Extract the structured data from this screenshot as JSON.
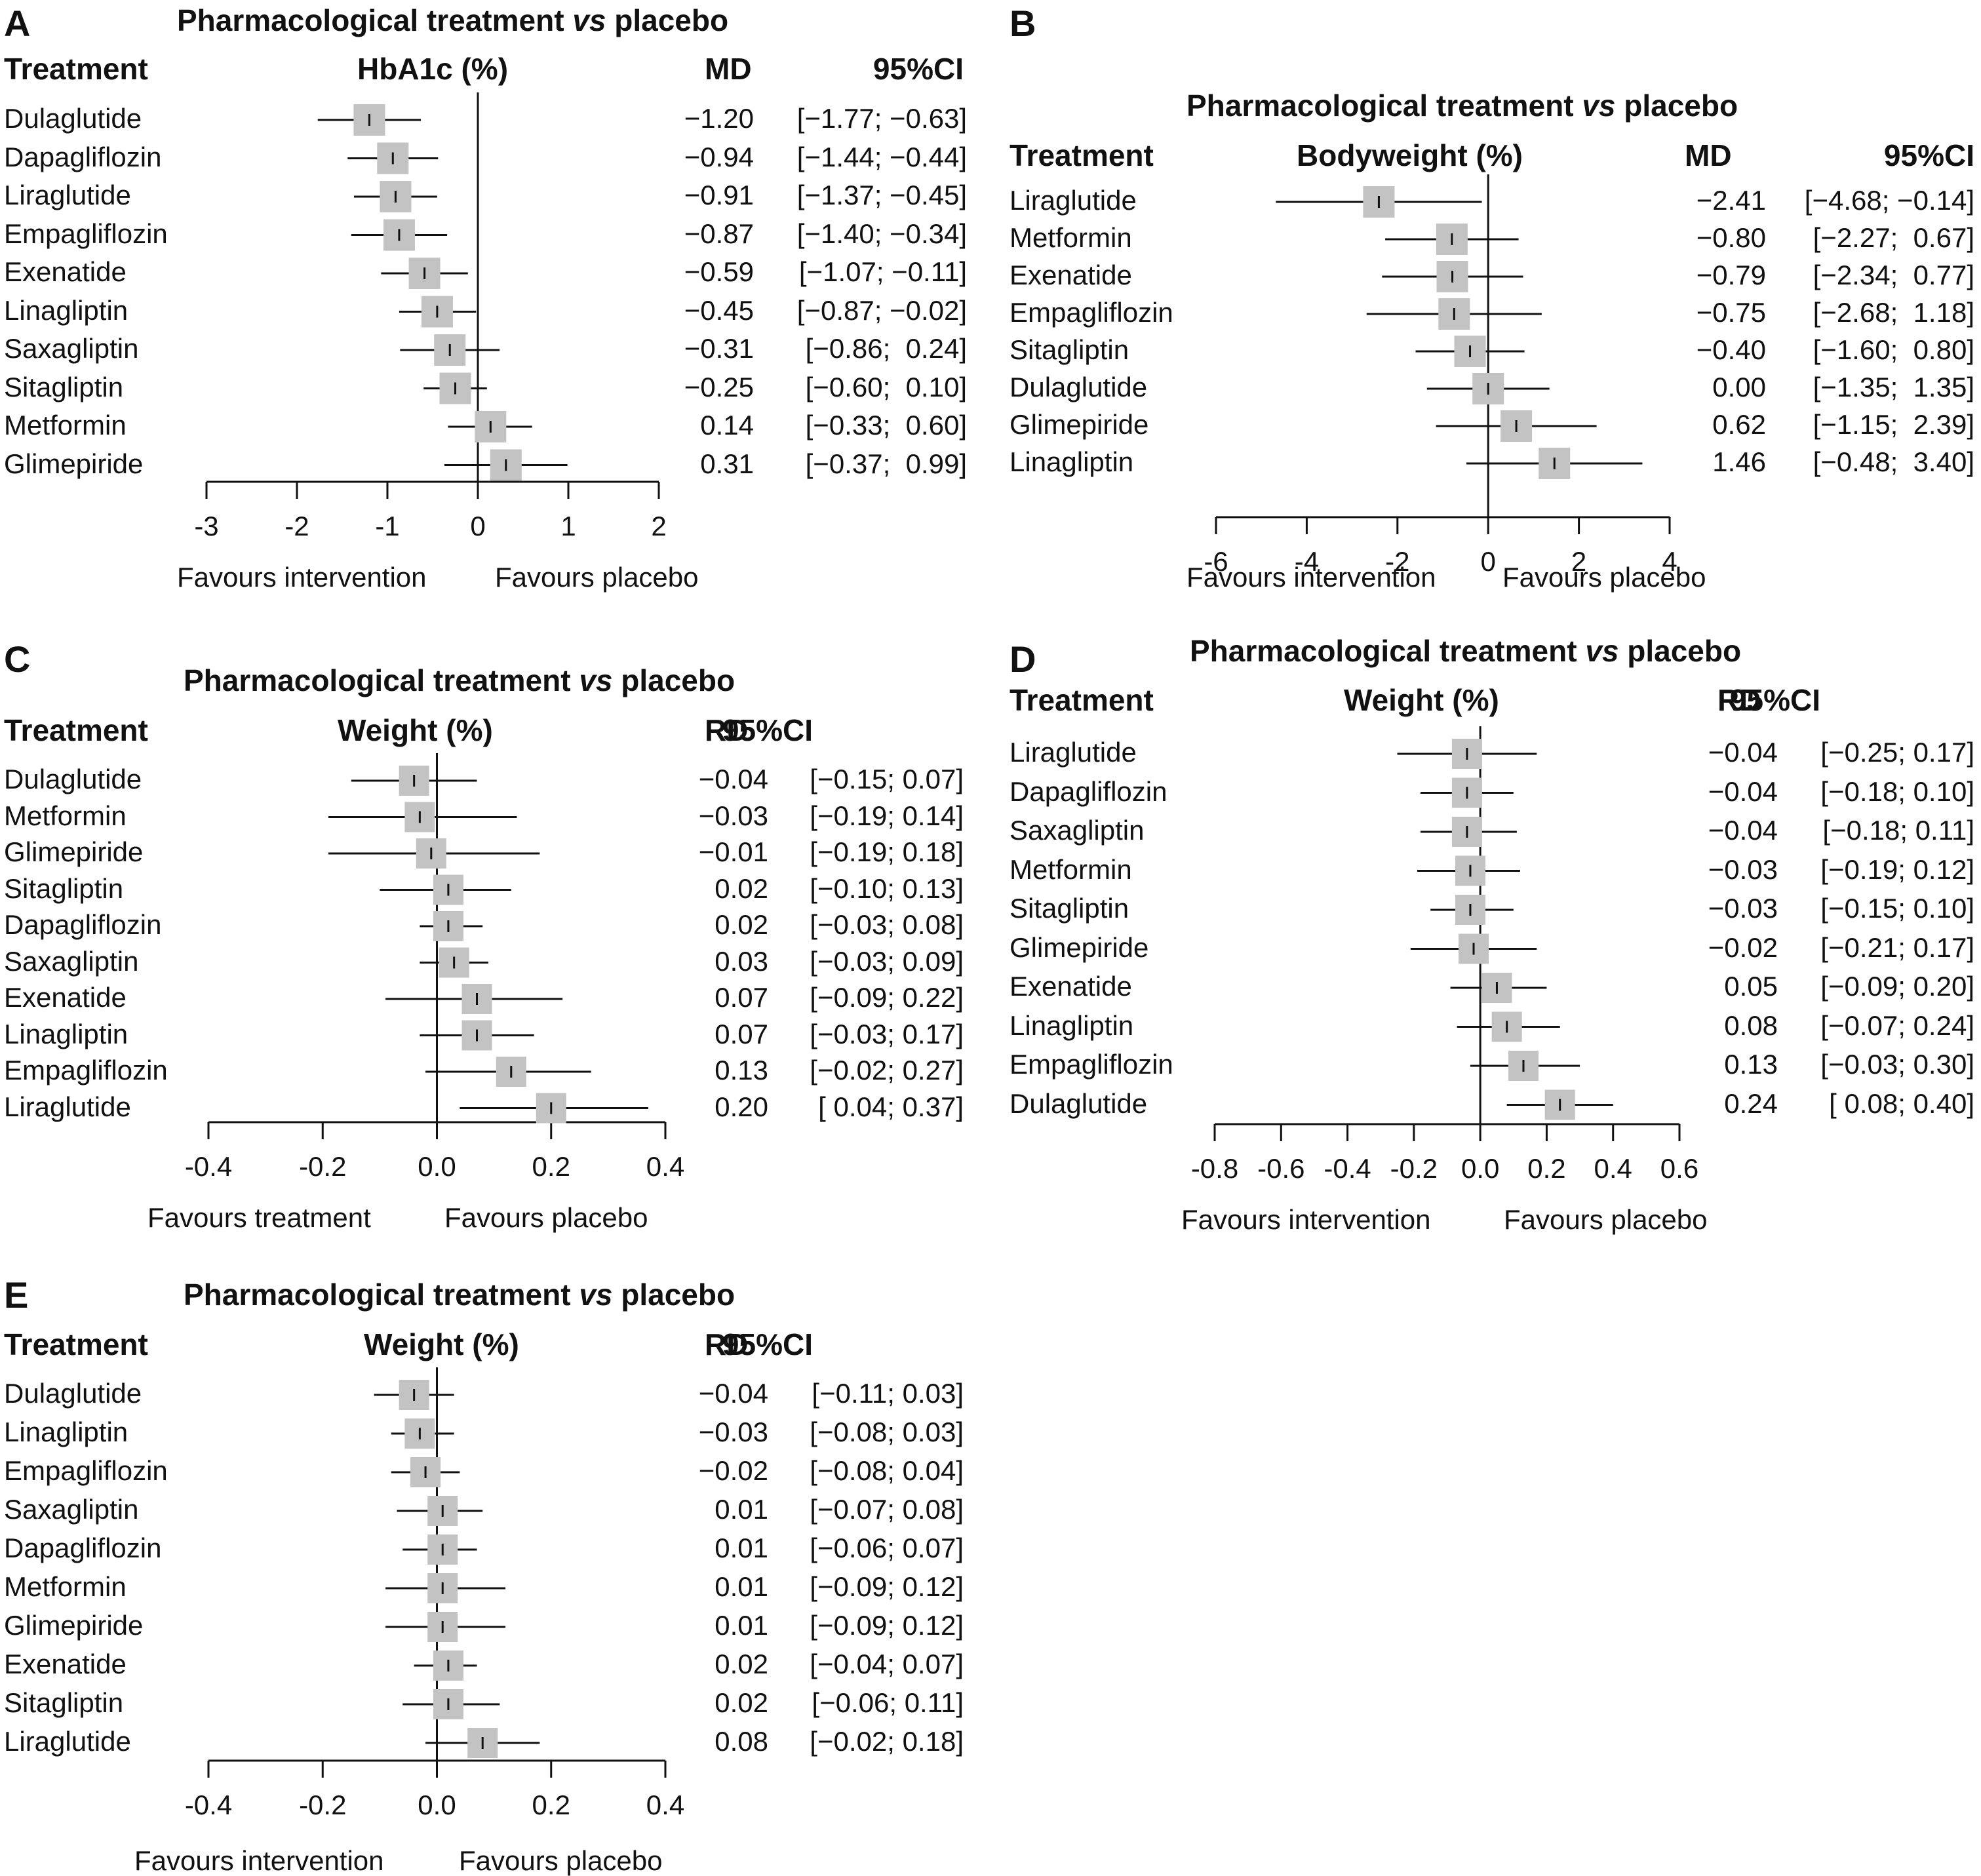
{
  "chart_data": [
    {
      "id": "A",
      "type": "forest",
      "title_main": "Pharmacological treatment ",
      "title_vs": "vs",
      "title_end": " placebo",
      "col_treatment": "Treatment",
      "col_measure": "HbA1c (%)",
      "col_est": "MD",
      "col_ci": "95%CI",
      "favours_left": "Favours intervention",
      "favours_right": "Favours placebo",
      "xlim": [
        -3,
        2
      ],
      "ticks": [
        -3,
        -2,
        -1,
        0,
        1,
        2
      ],
      "tick_labels": [
        "-3",
        "-2",
        "-1",
        "0",
        "1",
        "2"
      ],
      "rows": [
        {
          "name": "Dulaglutide",
          "est": -1.2,
          "lo": -1.77,
          "hi": -0.63,
          "est_text": "−1.20",
          "ci_text": "[−1.77; −0.63]"
        },
        {
          "name": "Dapagliflozin",
          "est": -0.94,
          "lo": -1.44,
          "hi": -0.44,
          "est_text": "−0.94",
          "ci_text": "[−1.44; −0.44]"
        },
        {
          "name": "Liraglutide",
          "est": -0.91,
          "lo": -1.37,
          "hi": -0.45,
          "est_text": "−0.91",
          "ci_text": "[−1.37; −0.45]"
        },
        {
          "name": "Empagliflozin",
          "est": -0.87,
          "lo": -1.4,
          "hi": -0.34,
          "est_text": "−0.87",
          "ci_text": "[−1.40; −0.34]"
        },
        {
          "name": "Exenatide",
          "est": -0.59,
          "lo": -1.07,
          "hi": -0.11,
          "est_text": "−0.59",
          "ci_text": "[−1.07; −0.11]"
        },
        {
          "name": "Linagliptin",
          "est": -0.45,
          "lo": -0.87,
          "hi": -0.02,
          "est_text": "−0.45",
          "ci_text": "[−0.87; −0.02]"
        },
        {
          "name": "Saxagliptin",
          "est": -0.31,
          "lo": -0.86,
          "hi": 0.24,
          "est_text": "−0.31",
          "ci_text": "[−0.86;  0.24]"
        },
        {
          "name": "Sitagliptin",
          "est": -0.25,
          "lo": -0.6,
          "hi": 0.1,
          "est_text": "−0.25",
          "ci_text": "[−0.60;  0.10]"
        },
        {
          "name": "Metformin",
          "est": 0.14,
          "lo": -0.33,
          "hi": 0.6,
          "est_text": "0.14",
          "ci_text": "[−0.33;  0.60]"
        },
        {
          "name": "Glimepiride",
          "est": 0.31,
          "lo": -0.37,
          "hi": 0.99,
          "est_text": "0.31",
          "ci_text": "[−0.37;  0.99]"
        }
      ]
    },
    {
      "id": "B",
      "type": "forest",
      "title_main": "Pharmacological treatment ",
      "title_vs": "vs",
      "title_end": " placebo",
      "col_treatment": "Treatment",
      "col_measure": "Bodyweight (%)",
      "col_est": "MD",
      "col_ci": "95%CI",
      "favours_left": "Favours intervention",
      "favours_right": "Favours placebo",
      "xlim": [
        -6,
        4
      ],
      "ticks": [
        -6,
        -4,
        -2,
        0,
        2,
        4
      ],
      "tick_labels": [
        "-6",
        "-4",
        "-2",
        "0",
        "2",
        "4"
      ],
      "rows": [
        {
          "name": "Liraglutide",
          "est": -2.41,
          "lo": -4.68,
          "hi": -0.14,
          "est_text": "−2.41",
          "ci_text": "[−4.68; −0.14]"
        },
        {
          "name": "Metformin",
          "est": -0.8,
          "lo": -2.27,
          "hi": 0.67,
          "est_text": "−0.80",
          "ci_text": "[−2.27;  0.67]"
        },
        {
          "name": "Exenatide",
          "est": -0.79,
          "lo": -2.34,
          "hi": 0.77,
          "est_text": "−0.79",
          "ci_text": "[−2.34;  0.77]"
        },
        {
          "name": "Empagliflozin",
          "est": -0.75,
          "lo": -2.68,
          "hi": 1.18,
          "est_text": "−0.75",
          "ci_text": "[−2.68;  1.18]"
        },
        {
          "name": "Sitagliptin",
          "est": -0.4,
          "lo": -1.6,
          "hi": 0.8,
          "est_text": "−0.40",
          "ci_text": "[−1.60;  0.80]"
        },
        {
          "name": "Dulaglutide",
          "est": 0.0,
          "lo": -1.35,
          "hi": 1.35,
          "est_text": "0.00",
          "ci_text": "[−1.35;  1.35]"
        },
        {
          "name": "Glimepiride",
          "est": 0.62,
          "lo": -1.15,
          "hi": 2.39,
          "est_text": "0.62",
          "ci_text": "[−1.15;  2.39]"
        },
        {
          "name": "Linagliptin",
          "est": 1.46,
          "lo": -0.48,
          "hi": 3.4,
          "est_text": "1.46",
          "ci_text": "[−0.48;  3.40]"
        }
      ]
    },
    {
      "id": "C",
      "type": "forest",
      "title_main": "Pharmacological treatment ",
      "title_vs": "vs",
      "title_end": " placebo",
      "col_treatment": "Treatment",
      "col_measure": "Weight (%)",
      "col_est": "RD",
      "col_ci": "95%CI",
      "favours_left": "Favours treatment",
      "favours_right": "Favours placebo",
      "xlim": [
        -0.4,
        0.4
      ],
      "ticks": [
        -0.4,
        -0.2,
        0.0,
        0.2,
        0.4
      ],
      "tick_labels": [
        "-0.4",
        "-0.2",
        "0.0",
        "0.2",
        "0.4"
      ],
      "rows": [
        {
          "name": "Dulaglutide",
          "est": -0.04,
          "lo": -0.15,
          "hi": 0.07,
          "est_text": "−0.04",
          "ci_text": "[−0.15; 0.07]"
        },
        {
          "name": "Metformin",
          "est": -0.03,
          "lo": -0.19,
          "hi": 0.14,
          "est_text": "−0.03",
          "ci_text": "[−0.19; 0.14]"
        },
        {
          "name": "Glimepiride",
          "est": -0.01,
          "lo": -0.19,
          "hi": 0.18,
          "est_text": "−0.01",
          "ci_text": "[−0.19; 0.18]"
        },
        {
          "name": "Sitagliptin",
          "est": 0.02,
          "lo": -0.1,
          "hi": 0.13,
          "est_text": "0.02",
          "ci_text": "[−0.10; 0.13]"
        },
        {
          "name": "Dapagliflozin",
          "est": 0.02,
          "lo": -0.03,
          "hi": 0.08,
          "est_text": "0.02",
          "ci_text": "[−0.03; 0.08]"
        },
        {
          "name": "Saxagliptin",
          "est": 0.03,
          "lo": -0.03,
          "hi": 0.09,
          "est_text": "0.03",
          "ci_text": "[−0.03; 0.09]"
        },
        {
          "name": "Exenatide",
          "est": 0.07,
          "lo": -0.09,
          "hi": 0.22,
          "est_text": "0.07",
          "ci_text": "[−0.09; 0.22]"
        },
        {
          "name": "Linagliptin",
          "est": 0.07,
          "lo": -0.03,
          "hi": 0.17,
          "est_text": "0.07",
          "ci_text": "[−0.03; 0.17]"
        },
        {
          "name": "Empagliflozin",
          "est": 0.13,
          "lo": -0.02,
          "hi": 0.27,
          "est_text": "0.13",
          "ci_text": "[−0.02; 0.27]"
        },
        {
          "name": "Liraglutide",
          "est": 0.2,
          "lo": 0.04,
          "hi": 0.37,
          "est_text": "0.20",
          "ci_text": "[ 0.04; 0.37]"
        }
      ]
    },
    {
      "id": "D",
      "type": "forest",
      "title_main": "Pharmacological treatment ",
      "title_vs": "vs",
      "title_end": " placebo",
      "col_treatment": "Treatment",
      "col_measure": "Weight (%)",
      "col_est": "RD",
      "col_ci": "95%CI",
      "favours_left": "Favours intervention",
      "favours_right": "Favours placebo",
      "xlim": [
        -0.8,
        0.6
      ],
      "ticks": [
        -0.8,
        -0.6,
        -0.4,
        -0.2,
        0.0,
        0.2,
        0.4,
        0.6
      ],
      "tick_labels": [
        "-0.8",
        "-0.6",
        "-0.4",
        "-0.2",
        "0.0",
        "0.2",
        "0.4",
        "0.6"
      ],
      "rows": [
        {
          "name": "Liraglutide",
          "est": -0.04,
          "lo": -0.25,
          "hi": 0.17,
          "est_text": "−0.04",
          "ci_text": "[−0.25; 0.17]"
        },
        {
          "name": "Dapagliflozin",
          "est": -0.04,
          "lo": -0.18,
          "hi": 0.1,
          "est_text": "−0.04",
          "ci_text": "[−0.18; 0.10]"
        },
        {
          "name": "Saxagliptin",
          "est": -0.04,
          "lo": -0.18,
          "hi": 0.11,
          "est_text": "−0.04",
          "ci_text": "[−0.18; 0.11]"
        },
        {
          "name": "Metformin",
          "est": -0.03,
          "lo": -0.19,
          "hi": 0.12,
          "est_text": "−0.03",
          "ci_text": "[−0.19; 0.12]"
        },
        {
          "name": "Sitagliptin",
          "est": -0.03,
          "lo": -0.15,
          "hi": 0.1,
          "est_text": "−0.03",
          "ci_text": "[−0.15; 0.10]"
        },
        {
          "name": "Glimepiride",
          "est": -0.02,
          "lo": -0.21,
          "hi": 0.17,
          "est_text": "−0.02",
          "ci_text": "[−0.21; 0.17]"
        },
        {
          "name": "Exenatide",
          "est": 0.05,
          "lo": -0.09,
          "hi": 0.2,
          "est_text": "0.05",
          "ci_text": "[−0.09; 0.20]"
        },
        {
          "name": "Linagliptin",
          "est": 0.08,
          "lo": -0.07,
          "hi": 0.24,
          "est_text": "0.08",
          "ci_text": "[−0.07; 0.24]"
        },
        {
          "name": "Empagliflozin",
          "est": 0.13,
          "lo": -0.03,
          "hi": 0.3,
          "est_text": "0.13",
          "ci_text": "[−0.03; 0.30]"
        },
        {
          "name": "Dulaglutide",
          "est": 0.24,
          "lo": 0.08,
          "hi": 0.4,
          "est_text": "0.24",
          "ci_text": "[ 0.08; 0.40]"
        }
      ]
    },
    {
      "id": "E",
      "type": "forest",
      "title_main": "Pharmacological treatment ",
      "title_vs": "vs",
      "title_end": " placebo",
      "col_treatment": "Treatment",
      "col_measure": "Weight (%)",
      "col_est": "RD",
      "col_ci": "95%CI",
      "favours_left": "Favours intervention",
      "favours_right": "Favours placebo",
      "xlim": [
        -0.4,
        0.4
      ],
      "ticks": [
        -0.4,
        -0.2,
        0.0,
        0.2,
        0.4
      ],
      "tick_labels": [
        "-0.4",
        "-0.2",
        "0.0",
        "0.2",
        "0.4"
      ],
      "rows": [
        {
          "name": "Dulaglutide",
          "est": -0.04,
          "lo": -0.11,
          "hi": 0.03,
          "est_text": "−0.04",
          "ci_text": "[−0.11; 0.03]"
        },
        {
          "name": "Linagliptin",
          "est": -0.03,
          "lo": -0.08,
          "hi": 0.03,
          "est_text": "−0.03",
          "ci_text": "[−0.08; 0.03]"
        },
        {
          "name": "Empagliflozin",
          "est": -0.02,
          "lo": -0.08,
          "hi": 0.04,
          "est_text": "−0.02",
          "ci_text": "[−0.08; 0.04]"
        },
        {
          "name": "Saxagliptin",
          "est": 0.01,
          "lo": -0.07,
          "hi": 0.08,
          "est_text": "0.01",
          "ci_text": "[−0.07; 0.08]"
        },
        {
          "name": "Dapagliflozin",
          "est": 0.01,
          "lo": -0.06,
          "hi": 0.07,
          "est_text": "0.01",
          "ci_text": "[−0.06; 0.07]"
        },
        {
          "name": "Metformin",
          "est": 0.01,
          "lo": -0.09,
          "hi": 0.12,
          "est_text": "0.01",
          "ci_text": "[−0.09; 0.12]"
        },
        {
          "name": "Glimepiride",
          "est": 0.01,
          "lo": -0.09,
          "hi": 0.12,
          "est_text": "0.01",
          "ci_text": "[−0.09; 0.12]"
        },
        {
          "name": "Exenatide",
          "est": 0.02,
          "lo": -0.04,
          "hi": 0.07,
          "est_text": "0.02",
          "ci_text": "[−0.04; 0.07]"
        },
        {
          "name": "Sitagliptin",
          "est": 0.02,
          "lo": -0.06,
          "hi": 0.11,
          "est_text": "0.02",
          "ci_text": "[−0.06; 0.11]"
        },
        {
          "name": "Liraglutide",
          "est": 0.08,
          "lo": -0.02,
          "hi": 0.18,
          "est_text": "0.08",
          "ci_text": "[−0.02; 0.18]"
        }
      ]
    }
  ],
  "colors": {
    "box": "#c3c3c3",
    "line": "#111111",
    "text": "#111111"
  }
}
